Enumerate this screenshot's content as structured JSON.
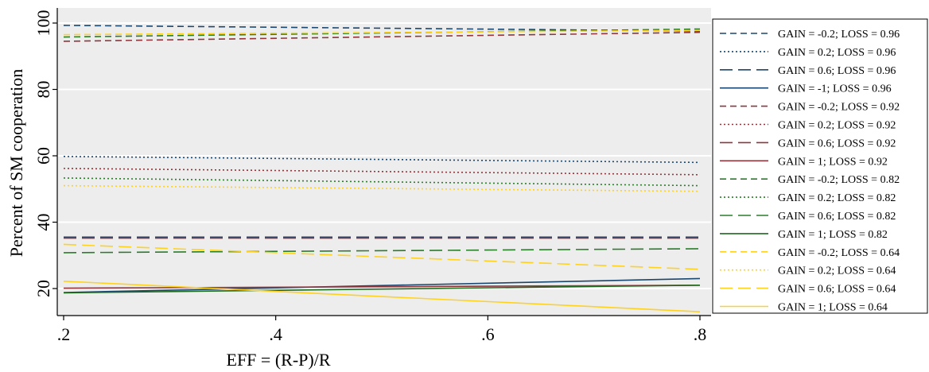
{
  "chart_data": {
    "type": "line",
    "title": "",
    "xlabel": "EFF = (R-P)/R",
    "ylabel": "Percent of SM cooperation",
    "x": [
      0.2,
      0.8
    ],
    "x_ticks": [
      0.2,
      0.4,
      0.6,
      0.8
    ],
    "x_tick_labels": [
      ".2",
      ".4",
      ".6",
      ".8"
    ],
    "xlim": [
      0.2,
      0.8
    ],
    "y_ticks": [
      20,
      40,
      60,
      80,
      100
    ],
    "y_tick_labels": [
      "20",
      "40",
      "60",
      "80",
      "100"
    ],
    "ylim": [
      11,
      103
    ],
    "grid": true,
    "legend_position": "right",
    "series": [
      {
        "name": "GAIN = -0.2; LOSS = 0.96",
        "values": [
          99.3,
          97.6
        ],
        "color": "#1a476f",
        "dash": "dash"
      },
      {
        "name": "GAIN = 0.2; LOSS = 0.96",
        "values": [
          59.8,
          58.0
        ],
        "color": "#1a476f",
        "dash": "dot"
      },
      {
        "name": "GAIN = 0.6; LOSS = 0.96",
        "values": [
          35.5,
          35.5
        ],
        "color": "#1a476f",
        "dash": "longdash"
      },
      {
        "name": "GAIN = -1; LOSS = 0.96",
        "values": [
          18.8,
          23.0
        ],
        "color": "#1a476f",
        "dash": "solid"
      },
      {
        "name": "GAIN = -0.2; LOSS = 0.92",
        "values": [
          94.5,
          97.2
        ],
        "color": "#90353b",
        "dash": "dash"
      },
      {
        "name": "GAIN = 0.2; LOSS = 0.92",
        "values": [
          56.2,
          54.3
        ],
        "color": "#90353b",
        "dash": "dot"
      },
      {
        "name": "GAIN = 0.6; LOSS = 0.92",
        "values": [
          35.2,
          35.2
        ],
        "color": "#90353b",
        "dash": "longdash"
      },
      {
        "name": "GAIN = 1; LOSS = 0.92",
        "values": [
          20.1,
          21.0
        ],
        "color": "#90353b",
        "dash": "solid"
      },
      {
        "name": "GAIN = -0.2; LOSS = 0.82",
        "values": [
          95.8,
          98.2
        ],
        "color": "#2b7d2b",
        "dash": "dash"
      },
      {
        "name": "GAIN = 0.2; LOSS = 0.82",
        "values": [
          53.3,
          51.0
        ],
        "color": "#2b7d2b",
        "dash": "dot"
      },
      {
        "name": "GAIN = 0.6; LOSS = 0.82",
        "values": [
          30.8,
          32.0
        ],
        "color": "#2b7d2b",
        "dash": "longdash"
      },
      {
        "name": "GAIN = 1; LOSS = 0.82",
        "values": [
          18.7,
          21.0
        ],
        "color": "#1f6b1f",
        "dash": "solid"
      },
      {
        "name": "GAIN = -0.2; LOSS = 0.64",
        "values": [
          96.5,
          97.8
        ],
        "color": "#ffd21f",
        "dash": "dash"
      },
      {
        "name": "GAIN = 0.2; LOSS = 0.64",
        "values": [
          51.0,
          49.3
        ],
        "color": "#ffd21f",
        "dash": "dot"
      },
      {
        "name": "GAIN = 0.6; LOSS = 0.64",
        "values": [
          33.3,
          25.8
        ],
        "color": "#ffd21f",
        "dash": "longdash"
      },
      {
        "name": "GAIN = 1; LOSS = 0.64",
        "values": [
          22.2,
          13.0
        ],
        "color": "#ffd21f",
        "dash": "solid"
      }
    ]
  }
}
